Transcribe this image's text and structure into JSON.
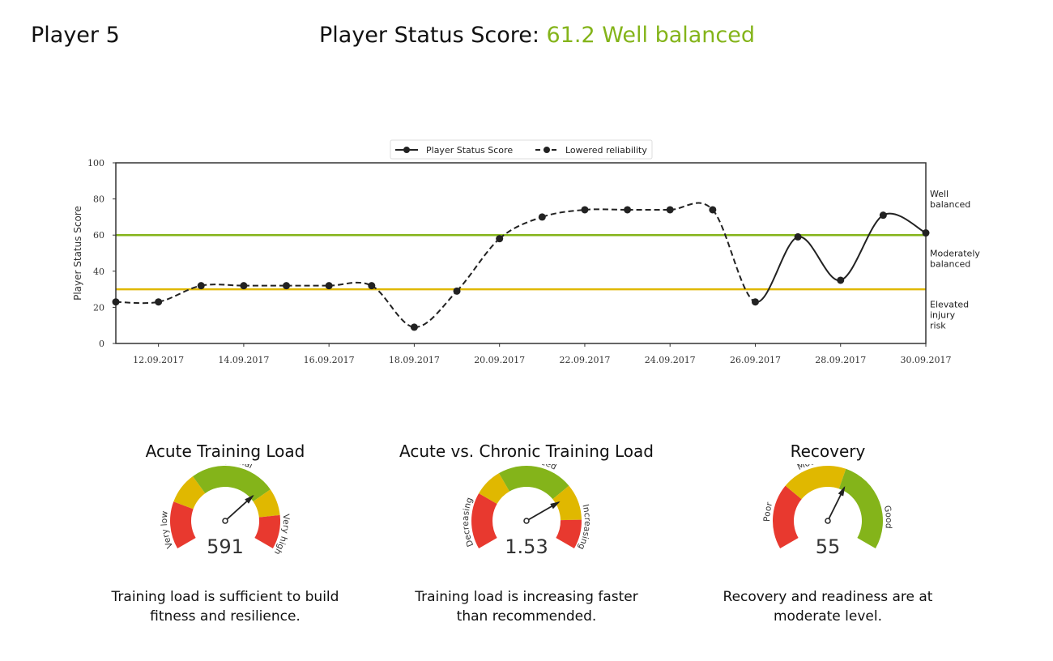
{
  "header": {
    "player": "Player 5",
    "status_label": "Player Status Score:",
    "status_value": "61.2",
    "status_text": "Well balanced",
    "status_color": "#84b41a"
  },
  "chart_data": {
    "type": "line",
    "ylabel": "Player Status Score",
    "ylim": [
      0,
      100
    ],
    "yticks": [
      0,
      20,
      40,
      60,
      80,
      100
    ],
    "xlim": [
      "11.09.2017",
      "30.09.2017"
    ],
    "xticks": [
      "12.09.2017",
      "14.09.2017",
      "16.09.2017",
      "18.09.2017",
      "20.09.2017",
      "22.09.2017",
      "24.09.2017",
      "26.09.2017",
      "28.09.2017",
      "30.09.2017"
    ],
    "grid": false,
    "legend": {
      "placement": "top-center",
      "entries": [
        "Player Status Score",
        "Lowered reliability"
      ]
    },
    "x": [
      "11.09.2017",
      "12.09.2017",
      "13.09.2017",
      "14.09.2017",
      "15.09.2017",
      "16.09.2017",
      "17.09.2017",
      "18.09.2017",
      "19.09.2017",
      "20.09.2017",
      "21.09.2017",
      "22.09.2017",
      "23.09.2017",
      "24.09.2017",
      "25.09.2017",
      "26.09.2017",
      "27.09.2017",
      "28.09.2017",
      "29.09.2017",
      "30.09.2017"
    ],
    "y": [
      23,
      23,
      32,
      32,
      32,
      32,
      32,
      9,
      29,
      58,
      70,
      74,
      74,
      74,
      74,
      23,
      59,
      35,
      71,
      61.2
    ],
    "lowered_reliability": [
      true,
      true,
      true,
      true,
      true,
      true,
      true,
      true,
      true,
      true,
      true,
      true,
      true,
      true,
      true,
      false,
      false,
      false,
      false,
      false
    ],
    "thresholds": [
      {
        "value": 60,
        "color": "#84b41a"
      },
      {
        "value": 30,
        "color": "#e0b800"
      }
    ],
    "zone_labels": [
      {
        "lines": [
          "Well",
          "balanced"
        ]
      },
      {
        "lines": [
          "Moderately",
          "balanced"
        ]
      },
      {
        "lines": [
          "Elevated",
          "injury",
          "risk"
        ]
      }
    ]
  },
  "gauges": [
    {
      "title": "Acute Training Load",
      "value": "591",
      "needle_fraction": 0.7,
      "segments": [
        {
          "to": 0.21,
          "color": "#e8392f"
        },
        {
          "to": 0.35,
          "color": "#e0b800"
        },
        {
          "to": 0.73,
          "color": "#84b41a"
        },
        {
          "to": 0.85,
          "color": "#e0b800"
        },
        {
          "to": 1,
          "color": "#e8392f"
        }
      ],
      "labels": [
        {
          "text": "Very low",
          "at": 0.09
        },
        {
          "text": "Optimal",
          "at": 0.54
        },
        {
          "text": "Very high",
          "at": 0.93
        }
      ],
      "description": [
        "Training load is sufficient to build",
        "fitness and resilience."
      ]
    },
    {
      "title": "Acute vs. Chronic Training Load",
      "value": "1.53",
      "needle_fraction": 0.75,
      "segments": [
        {
          "to": 0.25,
          "color": "#e8392f"
        },
        {
          "to": 0.375,
          "color": "#e0b800"
        },
        {
          "to": 0.71,
          "color": "#84b41a"
        },
        {
          "to": 0.87,
          "color": "#e0b800"
        },
        {
          "to": 1,
          "color": "#e8392f"
        }
      ],
      "labels": [
        {
          "text": "Decreasing",
          "at": 0.12
        },
        {
          "text": "Balanced",
          "at": 0.54
        },
        {
          "text": "Increasing",
          "at": 0.9
        }
      ],
      "description": [
        "Training load is increasing faster",
        "than recommended."
      ]
    },
    {
      "title": "Recovery",
      "value": "55",
      "needle_fraction": 0.61,
      "segments": [
        {
          "to": 0.29,
          "color": "#e8392f"
        },
        {
          "to": 0.58,
          "color": "#e0b800"
        },
        {
          "to": 1,
          "color": "#84b41a"
        }
      ],
      "labels": [
        {
          "text": "Poor",
          "at": 0.16
        },
        {
          "text": "Moderate",
          "at": 0.46
        },
        {
          "text": "Good",
          "at": 0.86
        }
      ],
      "description": [
        "Recovery and readiness are at",
        "moderate level."
      ]
    }
  ]
}
